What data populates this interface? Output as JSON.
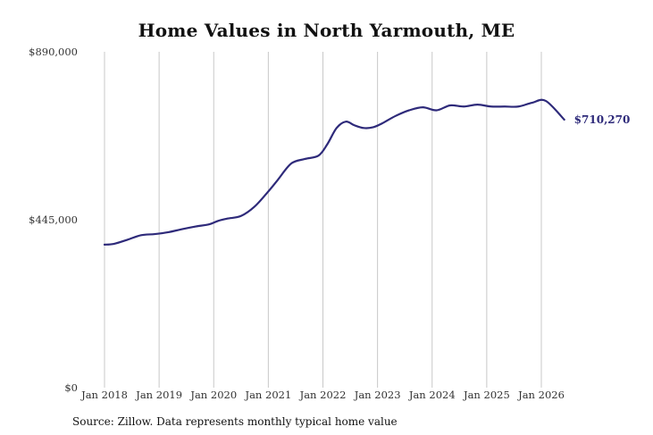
{
  "chart_data": {
    "type": "line",
    "title": "Home Values in North Yarmouth, ME",
    "xlabel": "",
    "ylabel": "",
    "ylim": [
      0,
      890000
    ],
    "y_ticks": [
      {
        "value": 0,
        "label": "$0"
      },
      {
        "value": 445000,
        "label": "$445,000"
      },
      {
        "value": 890000,
        "label": "$890,000"
      }
    ],
    "x_ticks": [
      {
        "value": 2018.0,
        "label": "Jan 2018"
      },
      {
        "value": 2019.0,
        "label": "Jan 2019"
      },
      {
        "value": 2020.0,
        "label": "Jan 2020"
      },
      {
        "value": 2021.0,
        "label": "Jan 2021"
      },
      {
        "value": 2022.0,
        "label": "Jan 2022"
      },
      {
        "value": 2023.0,
        "label": "Jan 2023"
      },
      {
        "value": 2024.0,
        "label": "Jan 2024"
      },
      {
        "value": 2025.0,
        "label": "Jan 2025"
      },
      {
        "value": 2026.0,
        "label": "Jan 2026"
      }
    ],
    "xlim": [
      2018.0,
      2026.42
    ],
    "grid": "vertical",
    "series": [
      {
        "color": "#2e2a7a",
        "x": [
          2018.0,
          2018.17,
          2018.42,
          2018.67,
          2018.92,
          2019.17,
          2019.42,
          2019.67,
          2019.92,
          2020.08,
          2020.25,
          2020.5,
          2020.75,
          2021.0,
          2021.17,
          2021.42,
          2021.67,
          2021.92,
          2022.08,
          2022.25,
          2022.42,
          2022.58,
          2022.75,
          2022.92,
          2023.08,
          2023.33,
          2023.58,
          2023.83,
          2024.08,
          2024.33,
          2024.58,
          2024.83,
          2025.08,
          2025.33,
          2025.58,
          2025.83,
          2026.08,
          2026.42
        ],
        "y": [
          379000,
          381000,
          392000,
          404000,
          407000,
          412000,
          420000,
          427000,
          433000,
          442000,
          448000,
          455000,
          480000,
          520000,
          550000,
          594000,
          606000,
          615000,
          645000,
          688000,
          705000,
          695000,
          688000,
          690000,
          700000,
          720000,
          735000,
          743000,
          735000,
          748000,
          745000,
          750000,
          745000,
          745000,
          745000,
          755000,
          760000,
          710270
        ]
      }
    ],
    "end_label": "$710,270",
    "source": "Source: Zillow. Data represents monthly typical home value"
  }
}
